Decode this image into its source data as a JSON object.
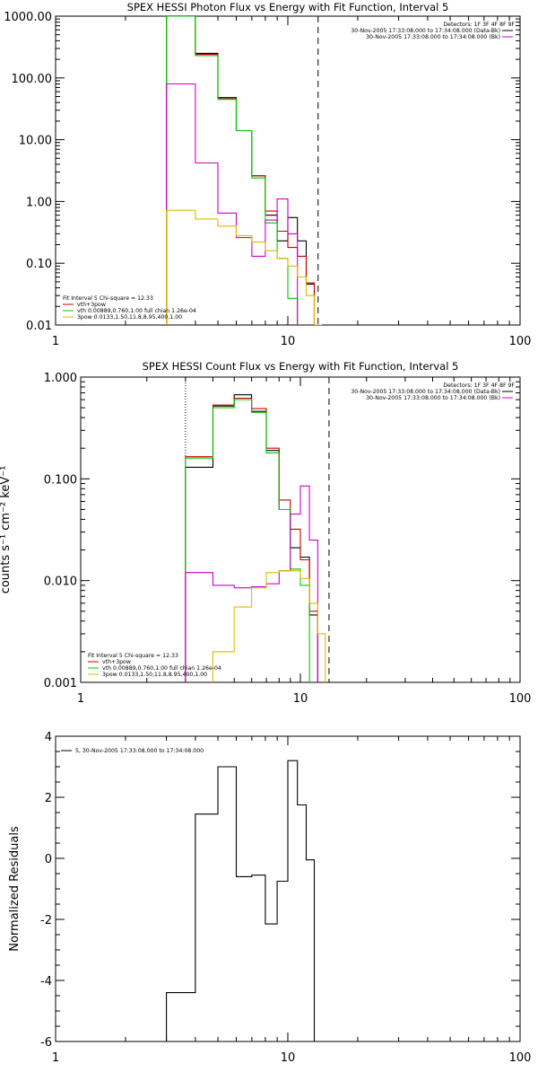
{
  "chart_data": [
    {
      "type": "line",
      "title": "SPEX HESSI Photon Flux vs Energy with Fit Function, Interval 5",
      "xscale": "log",
      "yscale": "log",
      "xlim": [
        1,
        100
      ],
      "ylim": [
        0.01,
        1000
      ],
      "xticks": [
        1,
        10,
        100
      ],
      "xtick_labels": [
        "1",
        "10",
        "100"
      ],
      "yticks": [
        0.01,
        0.1,
        1,
        10,
        100,
        1000
      ],
      "ytick_labels": [
        "0.01",
        "0.10",
        "1.00",
        "10.00",
        "100.00",
        "1000.00"
      ],
      "vlines": [
        {
          "x": 3,
          "style": "dotted",
          "color": "#000000"
        },
        {
          "x": 13.5,
          "style": "dashed",
          "color": "#000000"
        }
      ],
      "legend_top": {
        "header": "Detectors: 1F 3F 4F 8F 9F",
        "entries": [
          {
            "label": "30-Nov-2005 17:33:08.000 to 17:34:08.000 (Data-Bk)",
            "color": "#000000"
          },
          {
            "label": "30-Nov-2005 17:33:08.000 to 17:34:08.000 (Bk)",
            "color": "#cc00cc"
          }
        ]
      },
      "legend_bottom": {
        "header": "Fit Interval 5   Chi-square = 12.33",
        "entries": [
          {
            "label": "vth+3pow",
            "color": "#cc0000"
          },
          {
            "label": "vth 0.00889,0.760,1.00   full chian 1.26e-04",
            "color": "#00cc00"
          },
          {
            "label": "3pow 0.0133,1.50,11.8,8.95,400,1.00",
            "color": "#ddbb00"
          }
        ]
      },
      "bin_edges": [
        3,
        4,
        5,
        6,
        7,
        8,
        9,
        10,
        11,
        12,
        13,
        14,
        15
      ],
      "series": [
        {
          "color": "#000000",
          "values": [
            1000,
            250,
            48,
            14,
            2.6,
            0.6,
            0.23,
            0.55,
            0.23,
            0.046
          ]
        },
        {
          "color": "#cc0000",
          "values": [
            1000,
            240,
            46,
            14,
            2.6,
            0.7,
            0.33,
            0.18,
            0.13,
            0.048
          ]
        },
        {
          "color": "#00cc00",
          "values": [
            1000,
            230,
            45,
            14,
            2.4,
            0.45,
            0.12,
            0.027,
            0.005
          ]
        },
        {
          "color": "#cc00cc",
          "values": [
            80,
            4.2,
            0.65,
            0.26,
            0.13,
            0.5,
            1.1,
            0.3
          ]
        },
        {
          "color": "#ddbb00",
          "values": [
            0.72,
            0.52,
            0.4,
            0.28,
            0.22,
            0.16,
            0.12,
            0.09,
            0.06,
            0.03,
            0.01,
            0.005
          ]
        }
      ]
    },
    {
      "type": "line",
      "title": "SPEX HESSI Count Flux vs Energy with Fit Function, Interval 5",
      "ylabel": "counts s⁻¹ cm⁻² keV⁻¹",
      "xscale": "log",
      "yscale": "log",
      "xlim": [
        1,
        100
      ],
      "ylim": [
        0.001,
        1
      ],
      "xticks": [
        1,
        10,
        100
      ],
      "xtick_labels": [
        "1",
        "10",
        "100"
      ],
      "yticks": [
        0.001,
        0.01,
        0.1,
        1
      ],
      "ytick_labels": [
        "0.001",
        "0.010",
        "0.100",
        "1.000"
      ],
      "vlines": [
        {
          "x": 3,
          "style": "dotted",
          "color": "#000000"
        },
        {
          "x": 13.5,
          "style": "dashed",
          "color": "#000000"
        }
      ],
      "legend_top": {
        "header": "Detectors: 1F 3F 4F 8F 9F",
        "entries": [
          {
            "label": "30-Nov-2005 17:33:08.000 to 17:34:08.000 (Data-Bk)",
            "color": "#000000"
          },
          {
            "label": "30-Nov-2005 17:33:08.000 to 17:34:08.000 (Bk)",
            "color": "#cc00cc"
          }
        ]
      },
      "legend_bottom": {
        "header": "Fit Interval 5   Chi-square = 12.33",
        "entries": [
          {
            "label": "vth+3pow",
            "color": "#cc0000"
          },
          {
            "label": "vth 0.00889,0.760,1.00   full chian 1.26e-04",
            "color": "#00cc00"
          },
          {
            "label": "3pow 0.0133,1.50,11.8,8.95,400,1.00",
            "color": "#ddbb00"
          }
        ]
      },
      "bin_edges": [
        3,
        4,
        5,
        6,
        7,
        8,
        9,
        10,
        11,
        12,
        13,
        14,
        15
      ],
      "series": [
        {
          "color": "#000000",
          "values": [
            0.13,
            0.52,
            0.67,
            0.46,
            0.19,
            0.05,
            0.021,
            0.017,
            0.0046
          ]
        },
        {
          "color": "#cc0000",
          "values": [
            0.165,
            0.53,
            0.62,
            0.49,
            0.2,
            0.062,
            0.032,
            0.016,
            0.005
          ]
        },
        {
          "color": "#00cc00",
          "values": [
            0.16,
            0.5,
            0.6,
            0.45,
            0.18,
            0.05,
            0.013,
            0.009,
            0.0006
          ]
        },
        {
          "color": "#cc00cc",
          "values": [
            0.012,
            0.009,
            0.0085,
            0.0087,
            0.0093,
            0.0125,
            0.045,
            0.085,
            0.025
          ]
        },
        {
          "color": "#ddbb00",
          "values": [
            0.0004,
            0.002,
            0.0055,
            0.0085,
            0.012,
            0.0125,
            0.0125,
            0.0105,
            0.006,
            0.003,
            0.0008
          ]
        }
      ]
    },
    {
      "type": "line",
      "title": "",
      "ylabel": "Normalized Residuals",
      "xscale": "log",
      "yscale": "linear",
      "xlim": [
        1,
        100
      ],
      "ylim": [
        -6,
        4
      ],
      "xticks": [
        1,
        10,
        100
      ],
      "xtick_labels": [
        "1",
        "10",
        "100"
      ],
      "yticks": [
        -6,
        -4,
        -2,
        0,
        2,
        4
      ],
      "ytick_labels": [
        "-6",
        "-4",
        "-2",
        "0",
        "2",
        "4"
      ],
      "legend_top": {
        "header": "",
        "entries": [
          {
            "label": "5, 30-Nov-2005 17:33:08.000 to 17:34:08.000",
            "color": "#000000"
          }
        ]
      },
      "bin_edges": [
        3,
        4,
        5,
        6,
        7,
        8,
        9,
        10,
        11,
        12,
        13
      ],
      "series": [
        {
          "color": "#000000",
          "values": [
            -4.4,
            1.45,
            3.0,
            -0.6,
            -0.55,
            -2.15,
            -0.75,
            3.2,
            1.75,
            -0.05
          ]
        }
      ]
    }
  ]
}
